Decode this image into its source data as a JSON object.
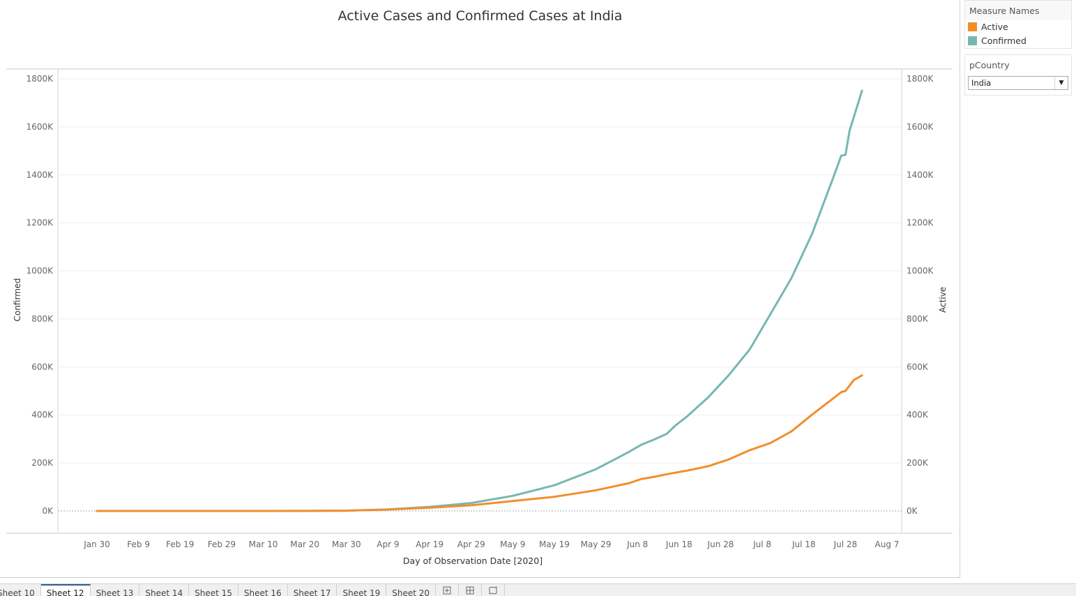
{
  "chart_data": {
    "type": "line",
    "title": "Active Cases and Confirmed Cases at India",
    "xlabel": "Day of Observation Date [2020]",
    "ylabel_left": "Confirmed",
    "ylabel_right": "Active",
    "x_ticks": [
      "Jan 30",
      "Feb 9",
      "Feb 19",
      "Feb 29",
      "Mar 10",
      "Mar 20",
      "Mar 30",
      "Apr 9",
      "Apr 19",
      "Apr 29",
      "May 9",
      "May 19",
      "May 29",
      "Jun 8",
      "Jun 18",
      "Jun 28",
      "Jul 8",
      "Jul 18",
      "Jul 28",
      "Aug 7"
    ],
    "y_ticks": [
      "0K",
      "200K",
      "400K",
      "600K",
      "800K",
      "1000K",
      "1200K",
      "1400K",
      "1600K",
      "1800K"
    ],
    "ylim": [
      0,
      1800000
    ],
    "xlim": [
      "2020-01-30",
      "2020-08-07"
    ],
    "grid": true,
    "series": [
      {
        "name": "Confirmed",
        "color": "#76b7b2",
        "points": [
          [
            "2020-01-30",
            1
          ],
          [
            "2020-02-09",
            3
          ],
          [
            "2020-02-19",
            3
          ],
          [
            "2020-02-29",
            3
          ],
          [
            "2020-03-10",
            62
          ],
          [
            "2020-03-20",
            244
          ],
          [
            "2020-03-30",
            1251
          ],
          [
            "2020-04-09",
            6725
          ],
          [
            "2020-04-19",
            17265
          ],
          [
            "2020-04-29",
            33050
          ],
          [
            "2020-05-09",
            62939
          ],
          [
            "2020-05-19",
            106750
          ],
          [
            "2020-05-29",
            173763
          ],
          [
            "2020-06-06",
            246628
          ],
          [
            "2020-06-09",
            276583
          ],
          [
            "2020-06-12",
            297535
          ],
          [
            "2020-06-15",
            320922
          ],
          [
            "2020-06-17",
            354065
          ],
          [
            "2020-06-20",
            395048
          ],
          [
            "2020-06-25",
            473105
          ],
          [
            "2020-06-30",
            566840
          ],
          [
            "2020-07-05",
            673165
          ],
          [
            "2020-07-10",
            820916
          ],
          [
            "2020-07-15",
            968876
          ],
          [
            "2020-07-20",
            1155191
          ],
          [
            "2020-07-25",
            1385522
          ],
          [
            "2020-07-27",
            1480073
          ],
          [
            "2020-07-28",
            1483156
          ],
          [
            "2020-07-29",
            1583792
          ],
          [
            "2020-08-01",
            1750723
          ]
        ]
      },
      {
        "name": "Active",
        "color": "#f28e2b",
        "points": [
          [
            "2020-01-30",
            1
          ],
          [
            "2020-02-09",
            3
          ],
          [
            "2020-02-19",
            3
          ],
          [
            "2020-02-29",
            3
          ],
          [
            "2020-03-10",
            58
          ],
          [
            "2020-03-20",
            214
          ],
          [
            "2020-03-30",
            1117
          ],
          [
            "2020-04-09",
            5709
          ],
          [
            "2020-04-19",
            13295
          ],
          [
            "2020-04-29",
            23651
          ],
          [
            "2020-05-09",
            41472
          ],
          [
            "2020-05-19",
            58802
          ],
          [
            "2020-05-29",
            86110
          ],
          [
            "2020-06-06",
            115942
          ],
          [
            "2020-06-09",
            133632
          ],
          [
            "2020-06-12",
            141842
          ],
          [
            "2020-06-15",
            153106
          ],
          [
            "2020-06-20",
            168269
          ],
          [
            "2020-06-25",
            186514
          ],
          [
            "2020-06-30",
            215125
          ],
          [
            "2020-07-05",
            253287
          ],
          [
            "2020-07-10",
            283407
          ],
          [
            "2020-07-15",
            331146
          ],
          [
            "2020-07-20",
            401637
          ],
          [
            "2020-07-25",
            467882
          ],
          [
            "2020-07-27",
            495000
          ],
          [
            "2020-07-28",
            500000
          ],
          [
            "2020-07-30",
            545318
          ],
          [
            "2020-08-01",
            565103
          ]
        ]
      }
    ]
  },
  "legend": {
    "title": "Measure Names",
    "items": [
      {
        "label": "Active",
        "color": "#f28e2b"
      },
      {
        "label": "Confirmed",
        "color": "#76b7b2"
      }
    ]
  },
  "filter": {
    "title": "pCountry",
    "selected": "India"
  },
  "tabs": [
    "Sheet 10",
    "Sheet 12",
    "Sheet 13",
    "Sheet 14",
    "Sheet 15",
    "Sheet 16",
    "Sheet 17",
    "Sheet 19",
    "Sheet 20"
  ],
  "active_tab": "Sheet 12"
}
